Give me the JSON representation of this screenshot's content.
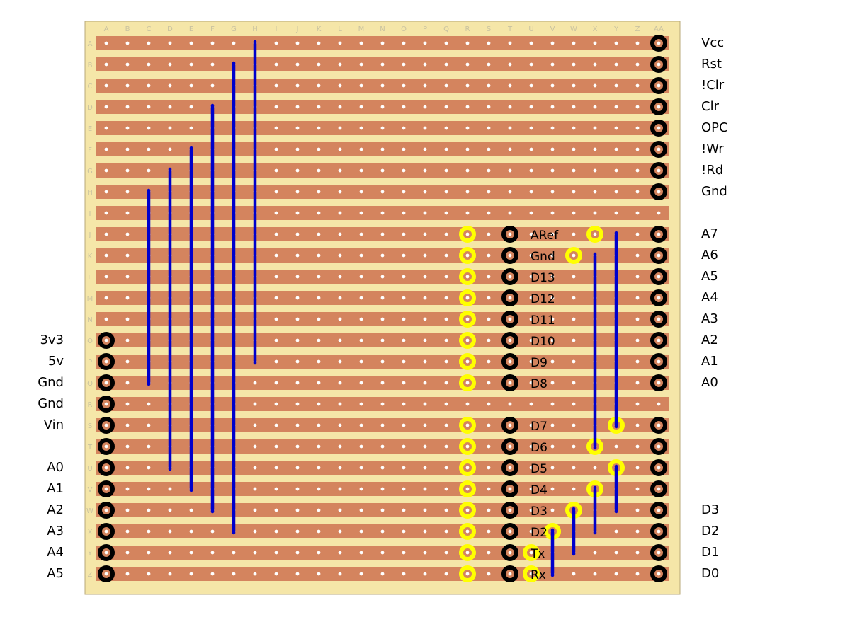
{
  "board": {
    "columns": [
      "A",
      "B",
      "C",
      "D",
      "E",
      "F",
      "G",
      "H",
      "I",
      "J",
      "K",
      "L",
      "M",
      "N",
      "O",
      "P",
      "Q",
      "R",
      "S",
      "T",
      "U",
      "V",
      "W",
      "X",
      "Y",
      "Z",
      "AA"
    ],
    "rows": [
      "A",
      "B",
      "C",
      "D",
      "E",
      "F",
      "G",
      "H",
      "I",
      "J",
      "K",
      "L",
      "M",
      "N",
      "O",
      "P",
      "Q",
      "R",
      "S",
      "T",
      "U",
      "V",
      "W",
      "X",
      "Y",
      "Z"
    ],
    "colors": {
      "board": "#f5e6a8",
      "strip": "#d4845e",
      "hole": "#ffffff",
      "wire": "#0000cc",
      "header_pad": "#000000",
      "arduino_pad": "#ffff00"
    }
  },
  "right_labels": [
    {
      "row": "A",
      "text": "Vcc"
    },
    {
      "row": "B",
      "text": "Rst"
    },
    {
      "row": "C",
      "text": "!Clr"
    },
    {
      "row": "D",
      "text": "Clr"
    },
    {
      "row": "E",
      "text": "OPC"
    },
    {
      "row": "F",
      "text": "!Wr"
    },
    {
      "row": "G",
      "text": "!Rd"
    },
    {
      "row": "H",
      "text": "Gnd"
    },
    {
      "row": "J",
      "text": "A7"
    },
    {
      "row": "K",
      "text": "A6"
    },
    {
      "row": "L",
      "text": "A5"
    },
    {
      "row": "M",
      "text": "A4"
    },
    {
      "row": "N",
      "text": "A3"
    },
    {
      "row": "O",
      "text": "A2"
    },
    {
      "row": "P",
      "text": "A1"
    },
    {
      "row": "Q",
      "text": "A0"
    },
    {
      "row": "W",
      "text": "D3"
    },
    {
      "row": "X",
      "text": "D2"
    },
    {
      "row": "Y",
      "text": "D1"
    },
    {
      "row": "Z",
      "text": "D0"
    }
  ],
  "left_labels": [
    {
      "row": "O",
      "text": "3v3"
    },
    {
      "row": "P",
      "text": "5v"
    },
    {
      "row": "Q",
      "text": "Gnd"
    },
    {
      "row": "R",
      "text": "Gnd"
    },
    {
      "row": "S",
      "text": "Vin"
    },
    {
      "row": "U",
      "text": "A0"
    },
    {
      "row": "V",
      "text": "A1"
    },
    {
      "row": "W",
      "text": "A2"
    },
    {
      "row": "X",
      "text": "A3"
    },
    {
      "row": "Y",
      "text": "A4"
    },
    {
      "row": "Z",
      "text": "A5"
    }
  ],
  "pin_labels": [
    {
      "row": "J",
      "text": "ARef"
    },
    {
      "row": "K",
      "text": "Gnd"
    },
    {
      "row": "L",
      "text": "D13"
    },
    {
      "row": "M",
      "text": "D12"
    },
    {
      "row": "N",
      "text": "D11"
    },
    {
      "row": "O",
      "text": "D10"
    },
    {
      "row": "P",
      "text": "D9"
    },
    {
      "row": "Q",
      "text": "D8"
    },
    {
      "row": "S",
      "text": "D7"
    },
    {
      "row": "T",
      "text": "D6"
    },
    {
      "row": "U",
      "text": "D5"
    },
    {
      "row": "V",
      "text": "D4"
    },
    {
      "row": "W",
      "text": "D3"
    },
    {
      "row": "X",
      "text": "D2"
    },
    {
      "row": "Y",
      "text": "Tx"
    },
    {
      "row": "Z",
      "text": "Rx"
    }
  ],
  "header_pads": [
    {
      "col": "AA",
      "rows": [
        "A",
        "B",
        "C",
        "D",
        "E",
        "F",
        "G",
        "H",
        "J",
        "K",
        "L",
        "M",
        "N",
        "O",
        "P",
        "Q",
        "S",
        "T",
        "U",
        "V",
        "W",
        "X",
        "Y",
        "Z"
      ]
    },
    {
      "col": "T",
      "rows": [
        "J",
        "K",
        "L",
        "M",
        "N",
        "O",
        "P",
        "Q",
        "S",
        "T",
        "U",
        "V",
        "W",
        "X",
        "Y",
        "Z"
      ]
    },
    {
      "col": "A",
      "rows": [
        "O",
        "P",
        "Q",
        "R",
        "S",
        "T",
        "U",
        "V",
        "W",
        "X",
        "Y",
        "Z"
      ]
    }
  ],
  "arduino_pads": [
    {
      "col": "R",
      "rows": [
        "J",
        "K",
        "L",
        "M",
        "N",
        "O",
        "P",
        "Q",
        "S",
        "T",
        "U",
        "V",
        "W",
        "X",
        "Y",
        "Z"
      ]
    },
    {
      "col": "X",
      "rows": [
        "J"
      ]
    },
    {
      "col": "W",
      "rows": [
        "K"
      ]
    },
    {
      "col": "Y",
      "rows": [
        "S",
        "U"
      ]
    },
    {
      "col": "X",
      "rows": [
        "T",
        "V"
      ]
    },
    {
      "col": "W",
      "rows": [
        "W"
      ]
    },
    {
      "col": "V",
      "rows": [
        "X"
      ]
    },
    {
      "col": "U",
      "rows": [
        "Y"
      ]
    },
    {
      "col": "T",
      "rows": [
        "Z"
      ],
      "offset": 1
    }
  ],
  "wires": [
    {
      "col": "H",
      "from": "A",
      "to": "P"
    },
    {
      "col": "G",
      "from": "B",
      "to": "X"
    },
    {
      "col": "F",
      "from": "D",
      "to": "W"
    },
    {
      "col": "E",
      "from": "F",
      "to": "V"
    },
    {
      "col": "D",
      "from": "G",
      "to": "U"
    },
    {
      "col": "C",
      "from": "H",
      "to": "Q"
    },
    {
      "col": "Y",
      "from": "J",
      "to": "S"
    },
    {
      "col": "X",
      "from": "K",
      "to": "T"
    },
    {
      "col": "Y",
      "from": "U",
      "to": "W"
    },
    {
      "col": "X",
      "from": "V",
      "to": "X"
    },
    {
      "col": "W",
      "from": "W",
      "to": "Y"
    },
    {
      "col": "V",
      "from": "X",
      "to": "Z"
    }
  ]
}
